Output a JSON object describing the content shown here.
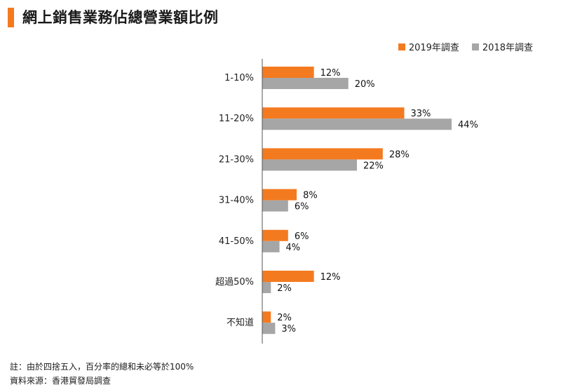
{
  "title": "網上銷售業務佔總營業額比例",
  "colors": {
    "accent": "#f47a20",
    "series_2019": "#f47a20",
    "series_2018": "#a6a6a6"
  },
  "chart_data": {
    "type": "bar",
    "orientation": "horizontal",
    "categories": [
      "1-10%",
      "11-20%",
      "21-30%",
      "31-40%",
      "41-50%",
      "超過50%",
      "不知道"
    ],
    "series": [
      {
        "name": "2019年調查",
        "values": [
          12,
          33,
          28,
          8,
          6,
          12,
          2
        ],
        "labels": [
          "12%",
          "33%",
          "28%",
          "8%",
          "6%",
          "12%",
          "2%"
        ]
      },
      {
        "name": "2018年調查",
        "values": [
          20,
          44,
          22,
          6,
          4,
          2,
          3
        ],
        "labels": [
          "20%",
          "44%",
          "22%",
          "6%",
          "4%",
          "2%",
          "3%"
        ]
      }
    ],
    "legend_position": "top-right",
    "grid": false,
    "xlim": [
      0,
      46
    ]
  },
  "notes": {
    "note": "註：由於四捨五入，百分率的總和未必等於100%",
    "source": "資料來源：香港貿發局調查"
  }
}
